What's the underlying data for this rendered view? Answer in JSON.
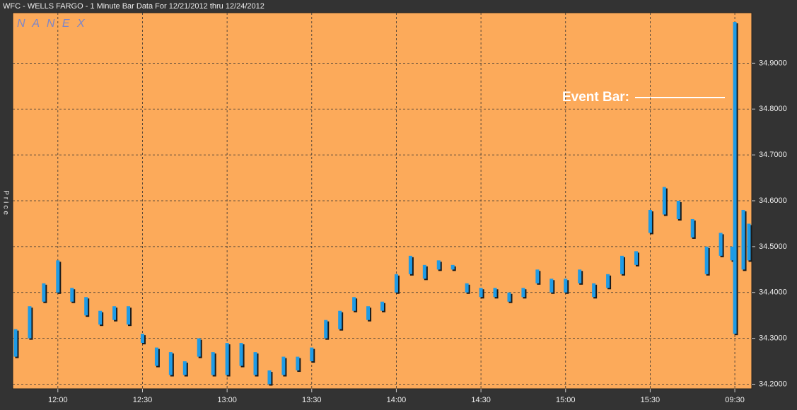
{
  "chart_data": {
    "type": "bar-range",
    "title": "WFC - WELLS FARGO - 1 Minute Bar Data For 12/21/2012  thru  12/24/2012",
    "watermark": "N A N E X",
    "y_label": "Price",
    "annotation": "Event Bar:",
    "color": "#1e9be6",
    "grid": true,
    "x": [
      -15,
      -10,
      -5,
      0,
      5,
      10,
      15,
      20,
      25,
      30,
      35,
      40,
      45,
      50,
      55,
      60,
      65,
      70,
      75,
      80,
      85,
      90,
      95,
      100,
      105,
      110,
      115,
      120,
      125,
      130,
      135,
      140,
      145,
      150,
      155,
      160,
      165,
      170,
      175,
      180,
      185,
      190,
      195,
      200,
      205,
      210,
      215,
      220,
      225,
      230,
      235,
      239,
      240,
      243,
      245
    ],
    "low": [
      34.26,
      34.3,
      34.38,
      34.4,
      34.38,
      34.35,
      34.33,
      34.34,
      34.33,
      34.29,
      34.24,
      34.22,
      34.22,
      34.26,
      34.22,
      34.22,
      34.24,
      34.22,
      34.2,
      34.22,
      34.23,
      34.25,
      34.3,
      34.32,
      34.36,
      34.34,
      34.36,
      34.4,
      34.44,
      34.43,
      34.45,
      34.45,
      34.4,
      34.39,
      34.39,
      34.38,
      34.39,
      34.42,
      34.4,
      34.4,
      34.42,
      34.39,
      34.41,
      34.44,
      34.46,
      34.53,
      34.57,
      34.56,
      34.52,
      34.44,
      34.48,
      34.47,
      34.31,
      34.45,
      34.47
    ],
    "high": [
      34.32,
      34.37,
      34.42,
      34.47,
      34.41,
      34.39,
      34.36,
      34.37,
      34.37,
      34.31,
      34.28,
      34.27,
      34.25,
      34.3,
      34.27,
      34.29,
      34.29,
      34.27,
      34.23,
      34.26,
      34.26,
      34.28,
      34.34,
      34.36,
      34.39,
      34.37,
      34.38,
      34.44,
      34.48,
      34.46,
      34.47,
      34.46,
      34.42,
      34.41,
      34.41,
      34.4,
      34.41,
      34.45,
      34.43,
      34.43,
      34.45,
      34.42,
      34.44,
      34.48,
      34.49,
      34.58,
      34.63,
      34.6,
      34.56,
      34.5,
      34.53,
      34.5,
      34.99,
      34.58,
      34.55
    ],
    "xlim": [
      -16,
      246
    ],
    "xticks": [
      {
        "value": 0,
        "label": "12:00"
      },
      {
        "value": 30,
        "label": "12:30"
      },
      {
        "value": 60,
        "label": "13:00"
      },
      {
        "value": 90,
        "label": "13:30"
      },
      {
        "value": 120,
        "label": "14:00"
      },
      {
        "value": 150,
        "label": "14:30"
      },
      {
        "value": 180,
        "label": "15:00"
      },
      {
        "value": 210,
        "label": "15:30"
      },
      {
        "value": 240,
        "label": "09:30"
      }
    ],
    "ylim": [
      34.19,
      35.01
    ],
    "yticks": [
      {
        "value": 34.2,
        "label": "34.2000"
      },
      {
        "value": 34.3,
        "label": "34.3000"
      },
      {
        "value": 34.4,
        "label": "34.4000"
      },
      {
        "value": 34.5,
        "label": "34.5000"
      },
      {
        "value": 34.6,
        "label": "34.6000"
      },
      {
        "value": 34.7,
        "label": "34.7000"
      },
      {
        "value": 34.8,
        "label": "34.8000"
      },
      {
        "value": 34.9,
        "label": "34.9000"
      }
    ]
  }
}
